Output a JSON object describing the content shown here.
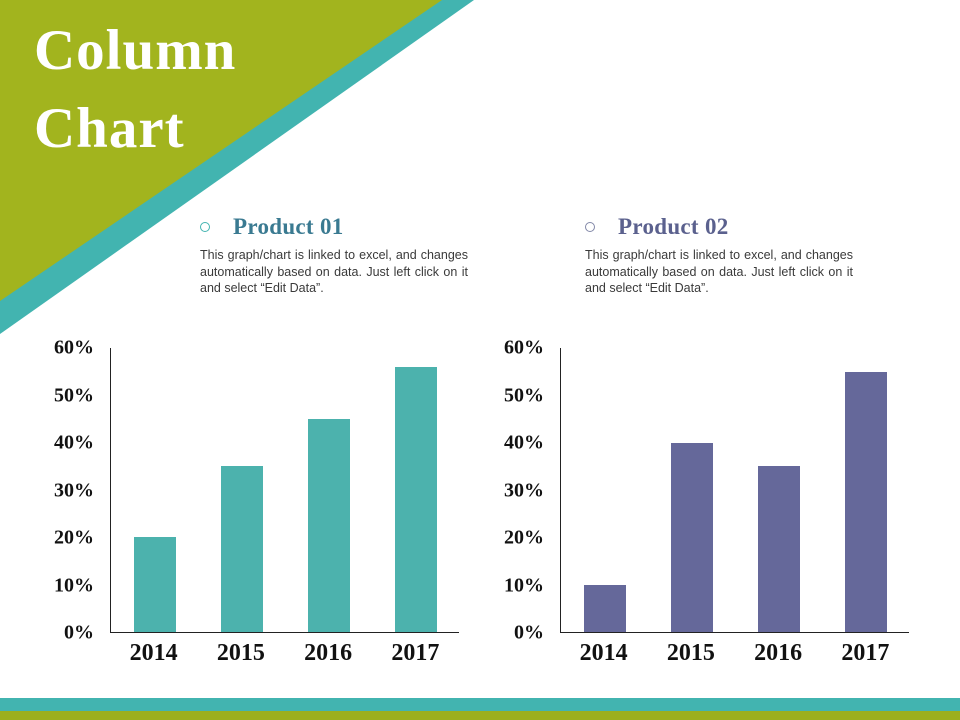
{
  "title": "Column Chart",
  "colors": {
    "corner_green": "#a2b41e",
    "accent_teal": "#42b4b0",
    "bar_teal": "#4cb2ad",
    "bar_purple": "#65689a"
  },
  "sections": [
    {
      "heading": "Product 01",
      "heading_color": "#3a7a91",
      "bullet_color": "#42b4b0",
      "description": "This graph/chart is linked to excel, and changes automatically based on data. Just left click on it and select “Edit Data”."
    },
    {
      "heading": "Product 02",
      "heading_color": "#5b618e",
      "bullet_color": "#8288a8",
      "description": "This graph/chart is linked to excel, and changes automatically based on data. Just left click on it and select “Edit Data”."
    }
  ],
  "chart_data": [
    {
      "type": "bar",
      "title": "Product 01",
      "categories": [
        "2014",
        "2015",
        "2016",
        "2017"
      ],
      "values": [
        20,
        35,
        45,
        56
      ],
      "unit": "%",
      "ylim": [
        0,
        60
      ],
      "ytick_step": 10,
      "bar_color": "#4cb2ad",
      "grid": false,
      "legend": "none"
    },
    {
      "type": "bar",
      "title": "Product 02",
      "categories": [
        "2014",
        "2015",
        "2016",
        "2017"
      ],
      "values": [
        10,
        40,
        35,
        55
      ],
      "unit": "%",
      "ylim": [
        0,
        60
      ],
      "ytick_step": 10,
      "bar_color": "#65689a",
      "grid": false,
      "legend": "none"
    }
  ]
}
